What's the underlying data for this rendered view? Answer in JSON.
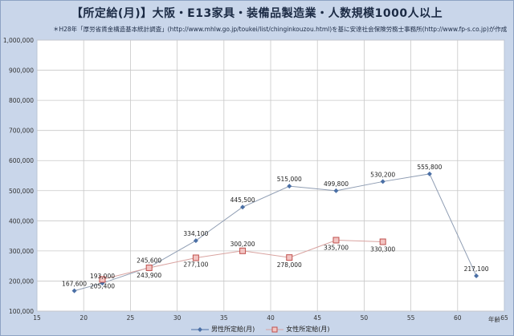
{
  "chart_data": {
    "type": "line",
    "title": "【所定給(月)】大阪・E13家具・装備品製造業・人数規模1000人以上",
    "subtitle": "＊H28年「厚労省賃金構造基本統計調査」(http://www.mhlw.go.jp/toukei/list/chinginkouzou.html)を基に安達社会保険労務士事務所(http://www.fp-s.co.jp)が作成",
    "xlabel": "年齢",
    "ylabel": "",
    "xlim": [
      15,
      65
    ],
    "ylim": [
      100000,
      1000000
    ],
    "x_ticks": [
      "15",
      "20",
      "25",
      "30",
      "35",
      "40",
      "45",
      "50",
      "55",
      "60",
      "65"
    ],
    "y_ticks": [
      "100,000",
      "200,000",
      "300,000",
      "400,000",
      "500,000",
      "600,000",
      "700,000",
      "800,000",
      "900,000",
      "1,000,000"
    ],
    "series": [
      {
        "name": "男性所定給(月)",
        "color": "#4a6fa5",
        "marker": "diamond",
        "x": [
          19,
          22,
          27,
          32,
          37,
          42,
          47,
          52,
          57,
          62
        ],
        "values": [
          167600,
          193000,
          245600,
          334100,
          445500,
          515000,
          499800,
          530200,
          555800,
          217100
        ],
        "labels": [
          "167,600",
          "193,000",
          "245,600",
          "334,100",
          "445,500",
          "515,000",
          "499,800",
          "530,200",
          "555,800",
          "217,100"
        ]
      },
      {
        "name": "女性所定給(月)",
        "color": "#c0504d",
        "marker": "square",
        "x": [
          22,
          27,
          32,
          37,
          42,
          47,
          52
        ],
        "values": [
          205400,
          243900,
          277100,
          300200,
          278000,
          335700,
          330300
        ],
        "labels": [
          "205,400",
          "243,900",
          "277,100",
          "300,200",
          "278,000",
          "335,700",
          "330,300"
        ]
      }
    ],
    "grid": true,
    "legend_position": "bottom"
  }
}
